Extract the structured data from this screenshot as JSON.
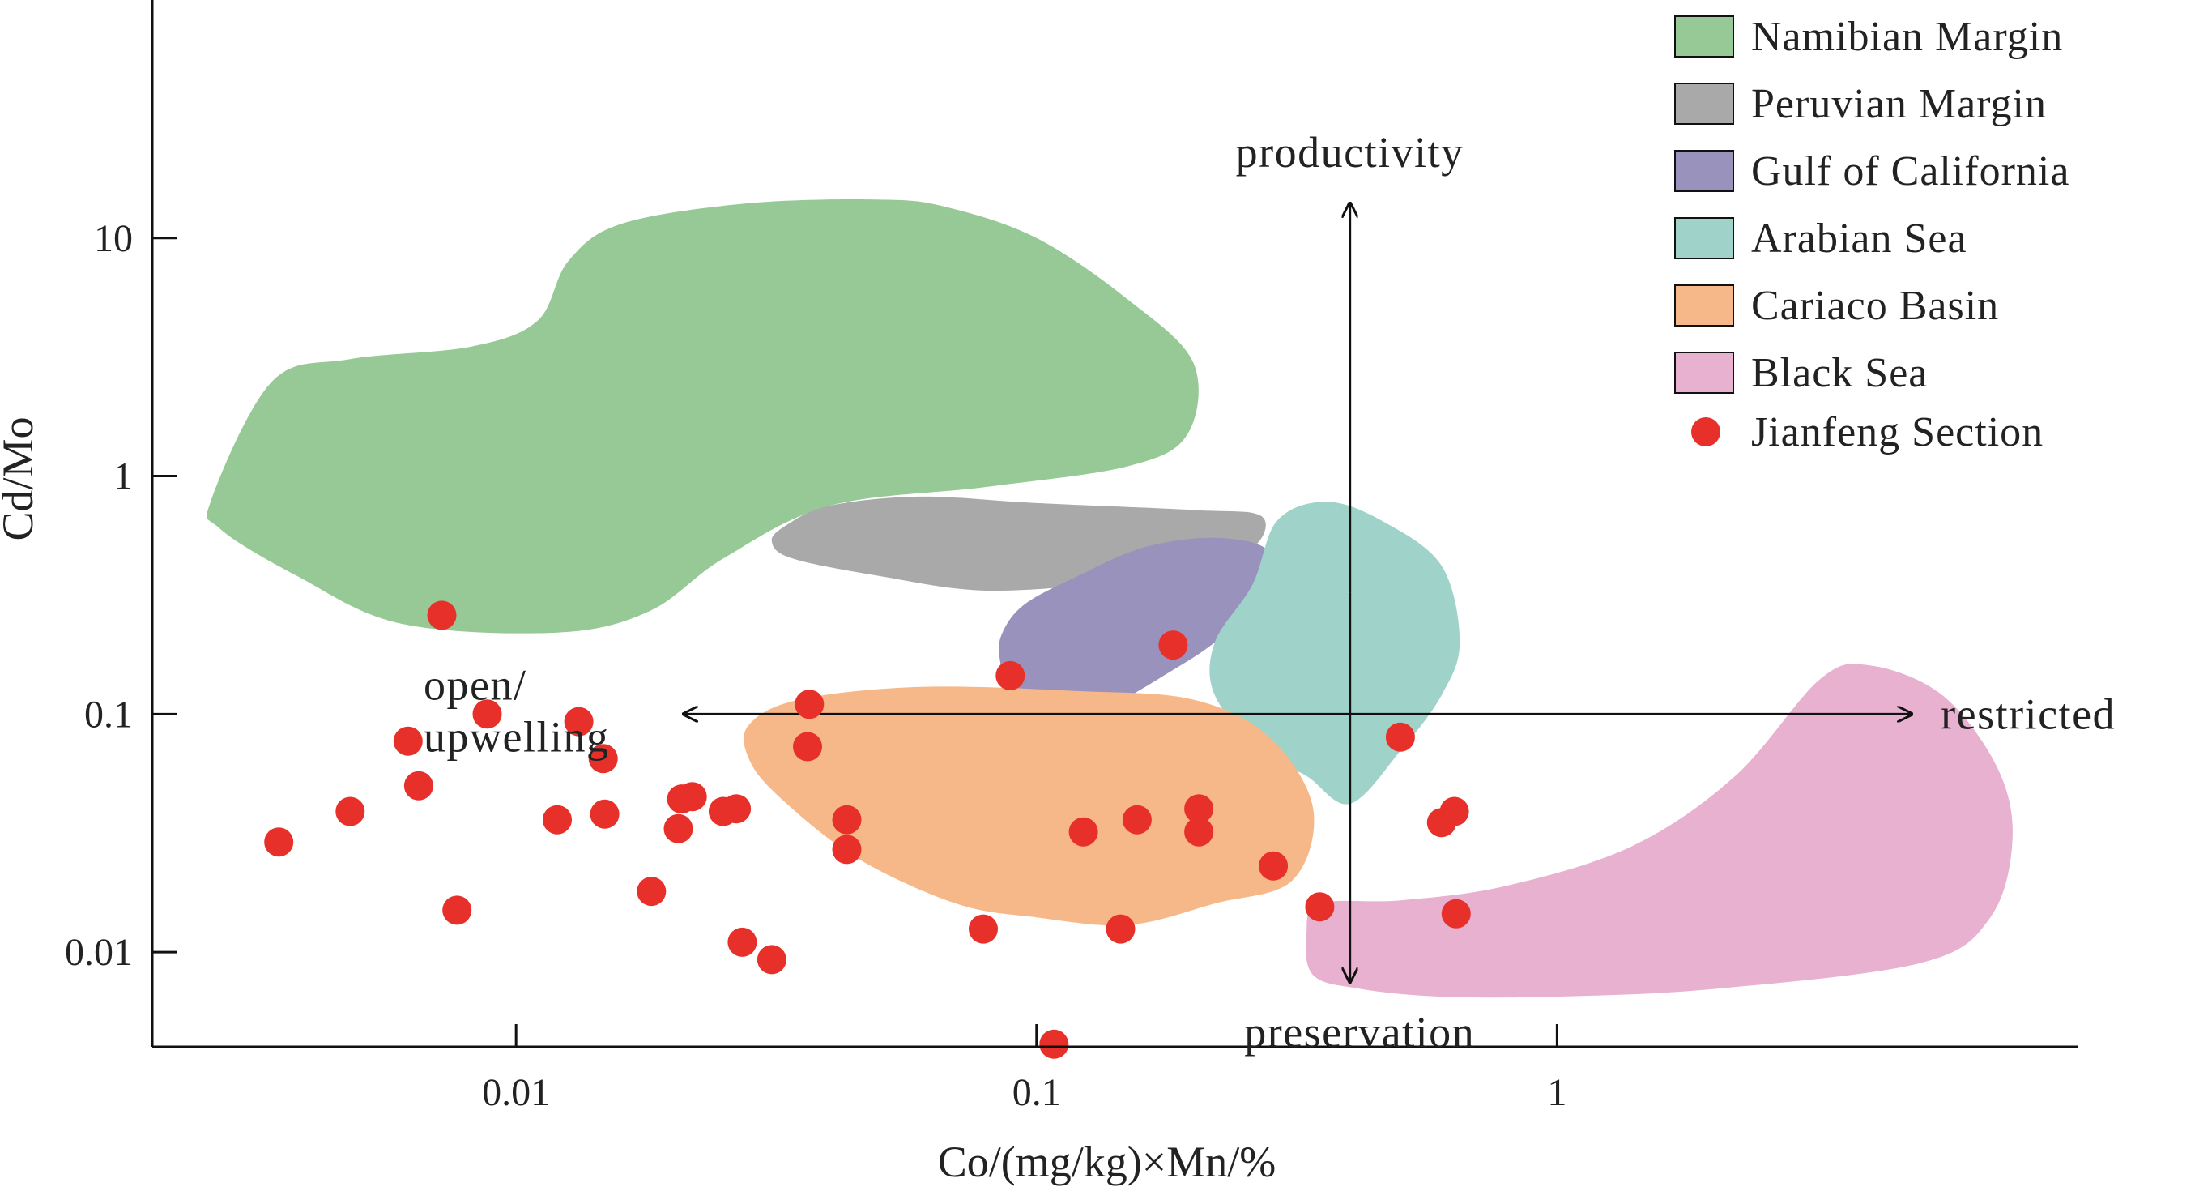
{
  "chart_data": {
    "type": "scatter",
    "xlabel": "Co/(mg/kg)×Mn/%",
    "ylabel": "Cd/Mo",
    "xscale": "log",
    "yscale": "log",
    "xlim": [
      0.002,
      10
    ],
    "ylim": [
      0.004,
      100
    ],
    "xticks": [
      {
        "value": 0.01,
        "label": "0.01"
      },
      {
        "value": 0.1,
        "label": "0.1"
      },
      {
        "value": 1,
        "label": "1"
      }
    ],
    "yticks": [
      {
        "value": 0.01,
        "label": "0.01"
      },
      {
        "value": 0.1,
        "label": "0.1"
      },
      {
        "value": 1,
        "label": "1"
      },
      {
        "value": 10,
        "label": "10"
      }
    ],
    "legend_position": "top-right",
    "fields": [
      {
        "name": "Namibian Margin",
        "color": "#96c996",
        "outline": [
          [
            0.0026,
            0.8
          ],
          [
            0.0034,
            2.5
          ],
          [
            0.0048,
            3.1
          ],
          [
            0.0082,
            3.5
          ],
          [
            0.011,
            4.5
          ],
          [
            0.0126,
            8.0
          ],
          [
            0.016,
            11.5
          ],
          [
            0.028,
            14.0
          ],
          [
            0.05,
            14.5
          ],
          [
            0.067,
            13.5
          ],
          [
            0.1,
            10.0
          ],
          [
            0.15,
            5.5
          ],
          [
            0.2,
            3.0
          ],
          [
            0.195,
            1.5
          ],
          [
            0.15,
            1.1
          ],
          [
            0.08,
            0.9
          ],
          [
            0.04,
            0.75
          ],
          [
            0.025,
            0.45
          ],
          [
            0.018,
            0.27
          ],
          [
            0.012,
            0.22
          ],
          [
            0.006,
            0.24
          ],
          [
            0.0038,
            0.38
          ],
          [
            0.0027,
            0.6
          ]
        ]
      },
      {
        "name": "Peruvian Margin",
        "color": "#a9a9a9",
        "outline": [
          [
            0.031,
            0.53
          ],
          [
            0.033,
            0.62
          ],
          [
            0.04,
            0.75
          ],
          [
            0.06,
            0.82
          ],
          [
            0.1,
            0.77
          ],
          [
            0.2,
            0.72
          ],
          [
            0.27,
            0.68
          ],
          [
            0.26,
            0.5
          ],
          [
            0.2,
            0.43
          ],
          [
            0.14,
            0.36
          ],
          [
            0.08,
            0.33
          ],
          [
            0.05,
            0.38
          ],
          [
            0.034,
            0.45
          ]
        ]
      },
      {
        "name": "Gulf of California",
        "color": "#9892bd",
        "outline": [
          [
            0.086,
            0.22
          ],
          [
            0.095,
            0.29
          ],
          [
            0.12,
            0.38
          ],
          [
            0.16,
            0.5
          ],
          [
            0.22,
            0.55
          ],
          [
            0.28,
            0.48
          ],
          [
            0.27,
            0.3
          ],
          [
            0.22,
            0.2
          ],
          [
            0.18,
            0.15
          ],
          [
            0.14,
            0.11
          ],
          [
            0.11,
            0.095
          ],
          [
            0.09,
            0.12
          ],
          [
            0.085,
            0.17
          ]
        ]
      },
      {
        "name": "Arabian Sea",
        "color": "#9fd3c9",
        "outline": [
          [
            0.22,
            0.2
          ],
          [
            0.26,
            0.35
          ],
          [
            0.29,
            0.65
          ],
          [
            0.36,
            0.78
          ],
          [
            0.46,
            0.65
          ],
          [
            0.6,
            0.42
          ],
          [
            0.65,
            0.2
          ],
          [
            0.6,
            0.12
          ],
          [
            0.5,
            0.07
          ],
          [
            0.4,
            0.042
          ],
          [
            0.33,
            0.055
          ],
          [
            0.27,
            0.07
          ],
          [
            0.22,
            0.12
          ]
        ]
      },
      {
        "name": "Cariaco Basin",
        "color": "#f6b888",
        "outline": [
          [
            0.028,
            0.09
          ],
          [
            0.035,
            0.115
          ],
          [
            0.06,
            0.13
          ],
          [
            0.12,
            0.125
          ],
          [
            0.2,
            0.115
          ],
          [
            0.28,
            0.08
          ],
          [
            0.34,
            0.04
          ],
          [
            0.31,
            0.02
          ],
          [
            0.22,
            0.016
          ],
          [
            0.15,
            0.013
          ],
          [
            0.1,
            0.014
          ],
          [
            0.07,
            0.016
          ],
          [
            0.045,
            0.025
          ],
          [
            0.032,
            0.045
          ],
          [
            0.028,
            0.065
          ]
        ]
      },
      {
        "name": "Black Sea",
        "color": "#e7b1cf",
        "outline": [
          [
            0.33,
            0.012
          ],
          [
            0.35,
            0.016
          ],
          [
            0.5,
            0.0165
          ],
          [
            0.8,
            0.019
          ],
          [
            1.4,
            0.028
          ],
          [
            2.2,
            0.055
          ],
          [
            3.2,
            0.14
          ],
          [
            4.0,
            0.16
          ],
          [
            5.5,
            0.12
          ],
          [
            7.0,
            0.06
          ],
          [
            7.5,
            0.03
          ],
          [
            6.8,
            0.014
          ],
          [
            5.0,
            0.009
          ],
          [
            2.0,
            0.007
          ],
          [
            1.0,
            0.0065
          ],
          [
            0.6,
            0.0065
          ],
          [
            0.42,
            0.007
          ],
          [
            0.34,
            0.008
          ]
        ]
      }
    ],
    "series": [
      {
        "name": "Jianfeng Section",
        "color": "#e8302a",
        "points": [
          [
            0.0035,
            0.029
          ],
          [
            0.0048,
            0.039
          ],
          [
            0.0062,
            0.077
          ],
          [
            0.0065,
            0.05
          ],
          [
            0.0072,
            0.26
          ],
          [
            0.0077,
            0.015
          ],
          [
            0.0088,
            0.1
          ],
          [
            0.012,
            0.036
          ],
          [
            0.0132,
            0.093
          ],
          [
            0.0147,
            0.065
          ],
          [
            0.0148,
            0.038
          ],
          [
            0.0182,
            0.018
          ],
          [
            0.0205,
            0.033
          ],
          [
            0.0208,
            0.044
          ],
          [
            0.0218,
            0.045
          ],
          [
            0.025,
            0.039
          ],
          [
            0.0265,
            0.04
          ],
          [
            0.0272,
            0.011
          ],
          [
            0.031,
            0.0093
          ],
          [
            0.0363,
            0.073
          ],
          [
            0.0366,
            0.11
          ],
          [
            0.0432,
            0.036
          ],
          [
            0.0432,
            0.027
          ],
          [
            0.079,
            0.0125
          ],
          [
            0.089,
            0.145
          ],
          [
            0.108,
            0.0041
          ],
          [
            0.123,
            0.032
          ],
          [
            0.145,
            0.0125
          ],
          [
            0.156,
            0.036
          ],
          [
            0.183,
            0.195
          ],
          [
            0.205,
            0.04
          ],
          [
            0.205,
            0.032
          ],
          [
            0.285,
            0.023
          ],
          [
            0.35,
            0.0155
          ],
          [
            0.5,
            0.08
          ],
          [
            0.6,
            0.035
          ],
          [
            0.635,
            0.039
          ],
          [
            0.64,
            0.0145
          ]
        ]
      }
    ],
    "annotations": {
      "productivity": "productivity",
      "preservation": "preservation",
      "open_line1": "open/",
      "open_line2": "upwelling",
      "restricted": "restricted"
    },
    "arrows": {
      "vertical": {
        "x": 0.4,
        "y_from": 0.0075,
        "y_to": 14
      },
      "horizontal": {
        "y": 0.1,
        "x_from": 0.021,
        "x_to": 4.8
      }
    },
    "legend_labels": [
      "Namibian Margin",
      "Peruvian Margin",
      "Gulf of California",
      "Arabian Sea",
      "Cariaco Basin",
      "Black Sea",
      "Jianfeng Section"
    ]
  }
}
